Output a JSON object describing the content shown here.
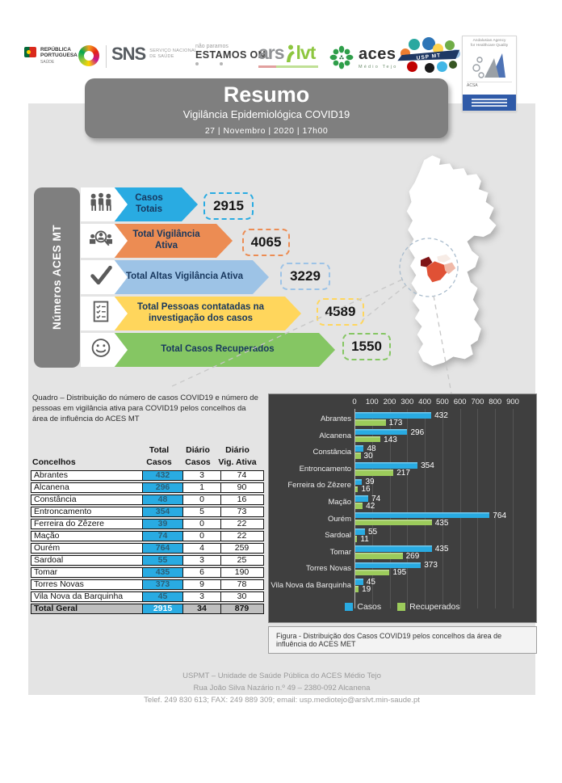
{
  "header": {
    "logos": {
      "republica": {
        "line1": "REPÚBLICA",
        "line2": "PORTUGUESA",
        "sub": "SAÚDE"
      },
      "sns": {
        "abbr": "SNS",
        "line1": "SERVIÇO NACIONAL",
        "line2": "DE SAÚDE"
      },
      "estamos_on": {
        "tagline": "não paramos",
        "title": "ESTAMOS ON"
      },
      "arslvt": {
        "part1": "ars",
        "part2": "lvt"
      },
      "aces": {
        "title": "aces",
        "subtitle": "Médio Tejo"
      },
      "uspmt": {
        "title": "USP MT"
      },
      "acsa": {
        "line1": "Andalusian Agency",
        "line2": "for Healthcare Quality",
        "name": "ACSA"
      }
    }
  },
  "title_box": {
    "title": "Resumo",
    "subtitle": "Vigilância Epidemiológica COVID19",
    "date": "27 | Novembro | 2020 | 17h00"
  },
  "numbers_panel": {
    "side_label": "Números ACES MT",
    "items": [
      {
        "icon": "people-group-icon",
        "label": "Casos Totais",
        "value": "2915",
        "color": "#29ABE2"
      },
      {
        "icon": "surveillance-icon",
        "label": "Total Vigilância Ativa",
        "value": "4065",
        "color": "#EC8C53"
      },
      {
        "icon": "checkmark-icon",
        "label": "Total Altas Vigilância Ativa",
        "value": "3229",
        "color": "#9DC3E6"
      },
      {
        "icon": "checklist-icon",
        "label": "Total Pessoas contatadas na investigação dos casos",
        "value": "4589",
        "color": "#FFD65C"
      },
      {
        "icon": "smiley-icon",
        "label": "Total Casos Recuperados",
        "value": "1550",
        "color": "#85C663"
      }
    ]
  },
  "table_section": {
    "caption": "Quadro – Distribuição do número de casos COVID19 e número de pessoas em vigilância ativa para COVID19 pelos concelhos da área de influência do ACES MT",
    "columns": [
      {
        "line1": "",
        "line2": "Concelhos"
      },
      {
        "line1": "Total",
        "line2": "Casos"
      },
      {
        "line1": "Diário",
        "line2": "Casos"
      },
      {
        "line1": "Diário",
        "line2": "Vig. Ativa"
      }
    ],
    "rows": [
      {
        "name": "Abrantes",
        "total": "432",
        "daily": "3",
        "vig": "74"
      },
      {
        "name": "Alcanena",
        "total": "296",
        "daily": "1",
        "vig": "90"
      },
      {
        "name": "Constância",
        "total": "48",
        "daily": "0",
        "vig": "16"
      },
      {
        "name": "Entroncamento",
        "total": "354",
        "daily": "5",
        "vig": "73"
      },
      {
        "name": "Ferreira do Zêzere",
        "total": "39",
        "daily": "0",
        "vig": "22"
      },
      {
        "name": "Mação",
        "total": "74",
        "daily": "0",
        "vig": "22"
      },
      {
        "name": "Ourém",
        "total": "764",
        "daily": "4",
        "vig": "259"
      },
      {
        "name": "Sardoal",
        "total": "55",
        "daily": "3",
        "vig": "25"
      },
      {
        "name": "Tomar",
        "total": "435",
        "daily": "6",
        "vig": "190"
      },
      {
        "name": "Torres Novas",
        "total": "373",
        "daily": "9",
        "vig": "78"
      },
      {
        "name": "Vila Nova da Barquinha",
        "total": "45",
        "daily": "3",
        "vig": "30"
      }
    ],
    "total_row": {
      "name": "Total Geral",
      "total": "2915",
      "daily": "34",
      "vig": "879"
    }
  },
  "chart_data": {
    "type": "bar",
    "orientation": "horizontal",
    "categories": [
      "Abrantes",
      "Alcanena",
      "Constância",
      "Entroncamento",
      "Ferreira do Zêzere",
      "Mação",
      "Ourém",
      "Sardoal",
      "Tomar",
      "Torres Novas",
      "Vila Nova da Barquinha"
    ],
    "series": [
      {
        "name": "Casos",
        "color": "#29ABE2",
        "values": [
          432,
          296,
          48,
          354,
          39,
          74,
          764,
          55,
          435,
          373,
          45
        ]
      },
      {
        "name": "Recuperados",
        "color": "#9CCB5B",
        "values": [
          173,
          143,
          30,
          217,
          16,
          42,
          435,
          11,
          269,
          195,
          19
        ]
      }
    ],
    "x_ticks": [
      0,
      100,
      200,
      300,
      400,
      500,
      600,
      700,
      800,
      900
    ],
    "xlim": [
      0,
      900
    ],
    "legend_position": "bottom",
    "background": "#3F3F3F",
    "grid": true
  },
  "figure_caption": "Figura -  Distribuição dos Casos COVID19 pelos concelhos da área de influência do ACES MET",
  "footer": {
    "line1": "USPMT – Unidade de Saúde Pública do ACES Médio Tejo",
    "line2": "Rua João Silva Nazário n.º 49 – 2380-092 Alcanena",
    "line3": "Telef. 249 830 613; FAX: 249 889 309; email: usp.mediotejo@arslvt.min-saude.pt"
  },
  "colors": {
    "accent_blue": "#29ABE2",
    "orange": "#EC8C53",
    "light_blue": "#9DC3E6",
    "yellow": "#FFD65C",
    "green": "#85C663",
    "chart_bg": "#3F3F3F",
    "panel_gray": "#E4E4E4",
    "title_gray": "#7F7F7F",
    "highlight_red": "#E05135"
  }
}
